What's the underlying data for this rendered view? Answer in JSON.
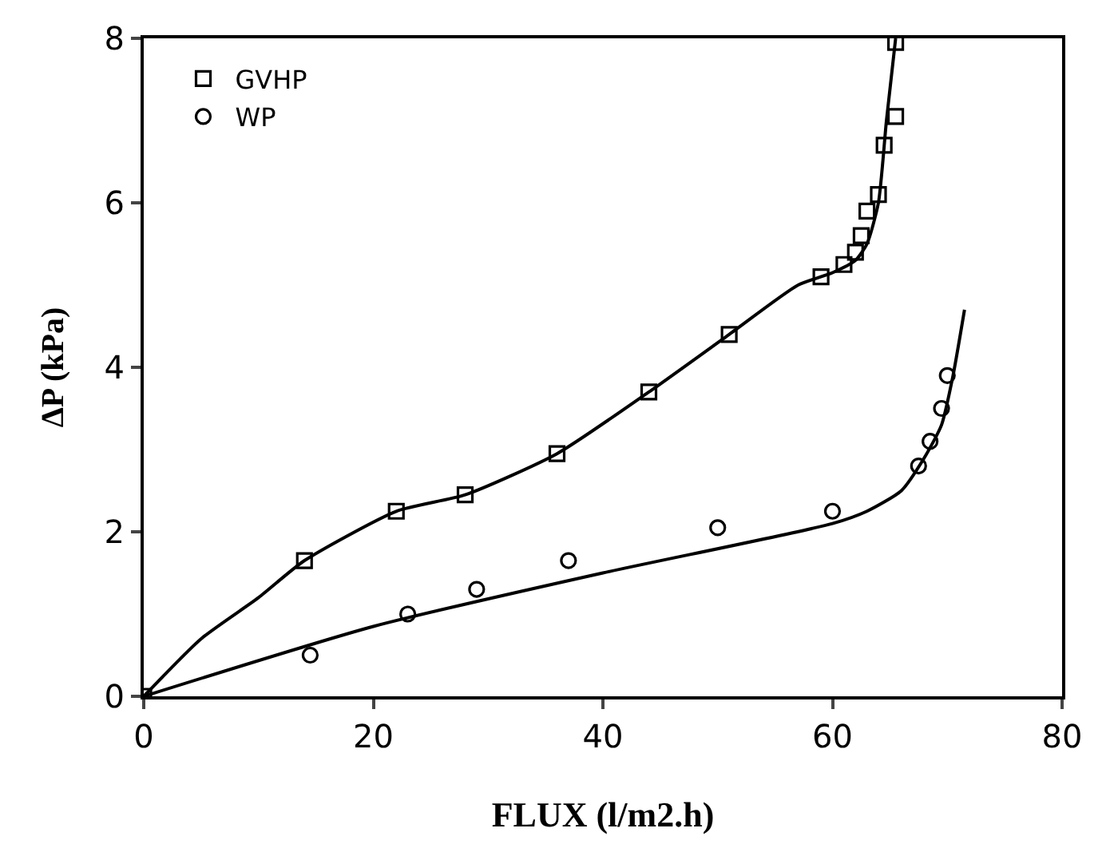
{
  "chart_data": {
    "type": "scatter",
    "xlabel": "FLUX (l/m2.h)",
    "ylabel": "ΔP (kPa)",
    "xlim": [
      0,
      80
    ],
    "ylim": [
      0,
      8
    ],
    "xticks": [
      0,
      20,
      40,
      60,
      80
    ],
    "yticks": [
      0,
      2,
      4,
      6,
      8
    ],
    "legend": "top left",
    "series": [
      {
        "name": "GVHP",
        "color": "#000000",
        "marker": "square",
        "x": [
          0,
          14,
          22,
          28,
          36,
          44,
          51,
          59,
          61,
          62,
          62.5,
          63,
          64,
          64.5,
          65.5,
          65.5
        ],
        "values": [
          0,
          1.65,
          2.25,
          2.45,
          2.95,
          3.7,
          4.4,
          5.1,
          5.25,
          5.4,
          5.6,
          5.9,
          6.1,
          6.7,
          7.05,
          7.95
        ]
      },
      {
        "name": "WP",
        "color": "#000000",
        "marker": "circle",
        "x": [
          14.5,
          23,
          29,
          37,
          50,
          60,
          67.5,
          68.5,
          69.5,
          70
        ],
        "values": [
          0.5,
          1.0,
          1.3,
          1.65,
          2.05,
          2.25,
          2.8,
          3.1,
          3.5,
          3.9
        ]
      },
      {
        "type": "line",
        "color": "#000000",
        "marker": "none",
        "x": [
          0,
          5,
          10,
          14,
          22,
          28,
          36,
          44,
          51,
          57,
          60,
          62,
          63,
          64,
          64.7,
          65.5
        ],
        "values": [
          0,
          0.7,
          1.2,
          1.65,
          2.25,
          2.45,
          2.95,
          3.7,
          4.4,
          5.0,
          5.15,
          5.3,
          5.5,
          6.0,
          7.0,
          8.0
        ]
      },
      {
        "type": "line",
        "color": "#000000",
        "marker": "none",
        "x": [
          0,
          20,
          40,
          60,
          63,
          66,
          68,
          69.5,
          70.5,
          71.5
        ],
        "values": [
          0,
          0.85,
          1.5,
          2.1,
          2.25,
          2.5,
          2.9,
          3.3,
          3.9,
          4.7
        ]
      }
    ]
  }
}
